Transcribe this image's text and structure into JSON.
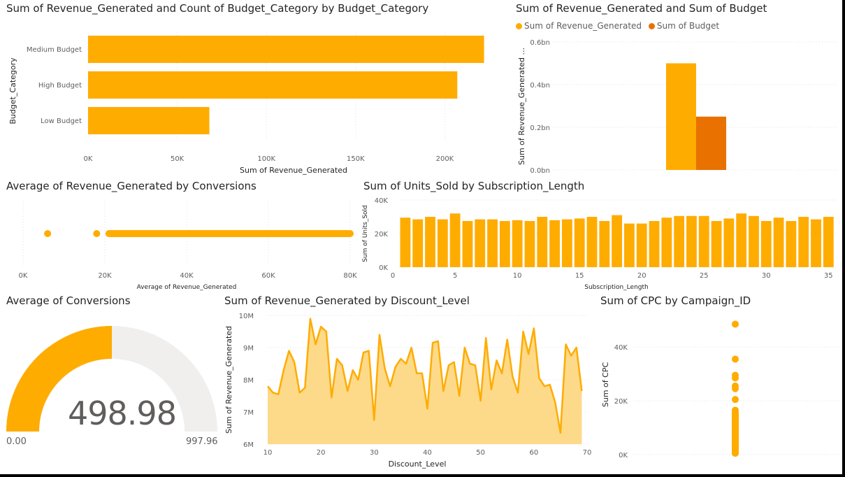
{
  "colors": {
    "primary": "#FFAC00",
    "secondary": "#E87100",
    "area": "#FDD98A",
    "grid": "#E1E1E1",
    "gaugeTrack": "#F0EFEE"
  },
  "v1": {
    "title": "Sum of Revenue_Generated and Count of Budget_Category by Budget_Category",
    "xlabel": "Sum of Revenue_Generated",
    "ylabel": "Budget_Category",
    "chart_data": {
      "type": "bar",
      "orientation": "horizontal",
      "categories": [
        "Medium Budget",
        "High Budget",
        "Low Budget"
      ],
      "values": [
        222000,
        207000,
        68000
      ],
      "xlim": [
        0,
        230000
      ],
      "xticks": [
        0,
        50000,
        100000,
        150000,
        200000
      ],
      "xtick_labels": [
        "0K",
        "50K",
        "100K",
        "150K",
        "200K"
      ],
      "grid": true
    }
  },
  "v2": {
    "title": "Sum of Revenue_Generated and Sum of Budget",
    "ylabel": "Sum of Revenue_Generated ...",
    "legend": [
      "Sum of Revenue_Generated",
      "Sum of Budget"
    ],
    "chart_data": {
      "type": "bar",
      "series": [
        {
          "name": "Sum of Revenue_Generated",
          "values": [
            0.5
          ]
        },
        {
          "name": "Sum of Budget",
          "values": [
            0.25
          ]
        }
      ],
      "ylim": [
        0,
        0.6
      ],
      "yticks": [
        0,
        0.2,
        0.4,
        0.6
      ],
      "ytick_labels": [
        "0.0bn",
        "0.2bn",
        "0.4bn",
        "0.6bn"
      ],
      "unit": "bn",
      "legend_position": "top-left",
      "grid": true
    }
  },
  "v3": {
    "title": "Average of Revenue_Generated by Conversions",
    "xlabel": "Average of Revenue_Generated",
    "chart_data": {
      "type": "scatter",
      "x": [
        6000,
        18000,
        21000,
        22000,
        23000,
        24000,
        25000,
        26000,
        27000,
        28000,
        29000,
        30000,
        32000,
        34000,
        36000,
        38000,
        40000,
        42000,
        44000,
        46000,
        48000,
        50000,
        52000,
        54000,
        56000,
        58000,
        60000,
        62000,
        64000,
        66000,
        68000,
        70000,
        72000,
        73000,
        74000,
        75000,
        76000,
        78000,
        79000,
        80000
      ],
      "xlim": [
        0,
        80000
      ],
      "xticks": [
        0,
        20000,
        40000,
        60000,
        80000
      ],
      "xtick_labels": [
        "0K",
        "20K",
        "40K",
        "60K",
        "80K"
      ],
      "grid": true
    }
  },
  "v4": {
    "title": "Sum of Units_Sold by Subscription_Length",
    "xlabel": "Subscription_Length",
    "ylabel": "Sum of Units_Sold",
    "chart_data": {
      "type": "bar",
      "x": [
        1,
        2,
        3,
        4,
        5,
        6,
        7,
        8,
        9,
        10,
        11,
        12,
        13,
        14,
        15,
        16,
        17,
        18,
        19,
        20,
        21,
        22,
        23,
        24,
        25,
        26,
        27,
        28,
        29,
        30,
        31,
        32,
        33,
        34,
        35
      ],
      "values": [
        29500,
        28500,
        30000,
        28500,
        32000,
        27500,
        28500,
        28500,
        27500,
        28000,
        27500,
        30000,
        28000,
        28500,
        29000,
        30000,
        27500,
        31000,
        26000,
        26000,
        27500,
        29500,
        30500,
        30500,
        30500,
        27500,
        29000,
        32000,
        30500,
        27500,
        29500,
        27500,
        30000,
        28500,
        30000
      ],
      "ylim": [
        0,
        40000
      ],
      "yticks": [
        0,
        20000,
        40000
      ],
      "ytick_labels": [
        "0K",
        "20K",
        "40K"
      ],
      "xticks": [
        0,
        5,
        10,
        15,
        20,
        25,
        30,
        35
      ],
      "grid": true
    }
  },
  "v5": {
    "title": "Average of Conversions",
    "value_label": "498.98",
    "min_label": "0.00",
    "max_label": "997.96",
    "chart_data": {
      "type": "gauge",
      "value": 498.98,
      "min": 0,
      "max": 997.96
    }
  },
  "v6": {
    "title": "Sum of Revenue_Generated by Discount_Level",
    "xlabel": "Discount_Level",
    "ylabel": "Sum of Revenue_Generated",
    "chart_data": {
      "type": "area",
      "x": [
        10,
        11,
        12,
        13,
        14,
        15,
        16,
        17,
        18,
        19,
        20,
        21,
        22,
        23,
        24,
        25,
        26,
        27,
        28,
        29,
        30,
        31,
        32,
        33,
        34,
        35,
        36,
        37,
        38,
        39,
        40,
        41,
        42,
        43,
        44,
        45,
        46,
        47,
        48,
        49,
        50,
        51,
        52,
        53,
        54,
        55,
        56,
        57,
        58,
        59,
        60,
        61,
        62,
        63,
        64,
        65,
        66,
        67,
        68,
        69
      ],
      "values": [
        7.8,
        7.6,
        7.55,
        8.3,
        8.9,
        8.55,
        7.6,
        7.75,
        9.9,
        9.1,
        9.65,
        9.5,
        7.45,
        8.65,
        8.45,
        7.65,
        8.3,
        8.0,
        8.85,
        8.9,
        6.75,
        9.4,
        8.35,
        7.8,
        8.4,
        8.65,
        8.5,
        9.0,
        8.2,
        8.2,
        7.1,
        9.15,
        9.2,
        7.65,
        8.45,
        8.55,
        7.5,
        9.0,
        8.5,
        8.45,
        7.35,
        9.3,
        7.7,
        8.6,
        8.2,
        9.25,
        8.1,
        7.6,
        9.5,
        8.8,
        9.6,
        8.05,
        7.8,
        7.85,
        7.3,
        6.35,
        9.1,
        8.75,
        9.0,
        7.65
      ],
      "ylim": [
        6,
        10
      ],
      "yticks": [
        6,
        7,
        8,
        9,
        10
      ],
      "ytick_labels": [
        "6M",
        "7M",
        "8M",
        "9M",
        "10M"
      ],
      "xlim": [
        10,
        70
      ],
      "xticks": [
        10,
        20,
        30,
        40,
        50,
        60,
        70
      ],
      "grid": true
    }
  },
  "v7": {
    "title": "Sum of CPC by Campaign_ID",
    "ylabel": "Sum of CPC",
    "chart_data": {
      "type": "scatter",
      "y": [
        48500,
        35500,
        29500,
        28500,
        25500,
        24500,
        20500,
        16500,
        14500,
        13500,
        12000,
        10500,
        9500,
        8500,
        7500,
        6500,
        5500,
        4500,
        3500,
        2500,
        1500,
        500
      ],
      "ylim": [
        0,
        52000
      ],
      "yticks": [
        0,
        20000,
        40000
      ],
      "ytick_labels": [
        "0K",
        "20K",
        "40K"
      ],
      "grid": true
    }
  }
}
